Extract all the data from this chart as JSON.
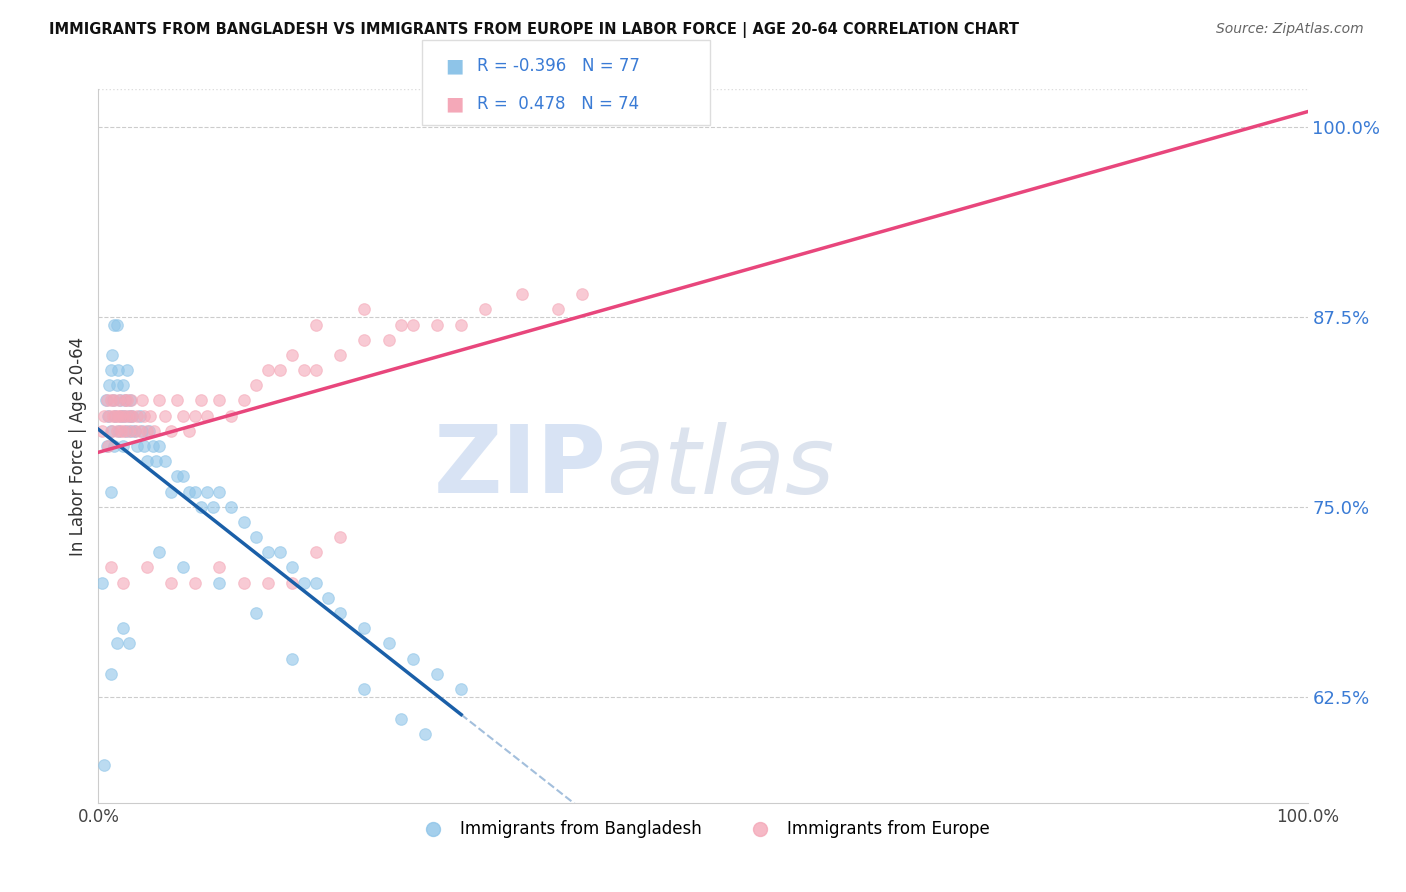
{
  "title": "IMMIGRANTS FROM BANGLADESH VS IMMIGRANTS FROM EUROPE IN LABOR FORCE | AGE 20-64 CORRELATION CHART",
  "source": "Source: ZipAtlas.com",
  "ylabel": "In Labor Force | Age 20-64",
  "legend_label_1": "Immigrants from Bangladesh",
  "legend_label_2": "Immigrants from Europe",
  "r1": -0.396,
  "n1": 77,
  "r2": 0.478,
  "n2": 74,
  "color_bangladesh": "#8ec4e8",
  "color_europe": "#f4a8b8",
  "color_line_bangladesh": "#1a5fa8",
  "color_line_europe": "#e8467c",
  "xlim": [
    0.0,
    1.0
  ],
  "ylim": [
    0.555,
    1.025
  ],
  "yticks": [
    0.625,
    0.75,
    0.875,
    1.0
  ],
  "ytick_labels": [
    "62.5%",
    "75.0%",
    "87.5%",
    "100.0%"
  ],
  "xtick_labels": [
    "0.0%",
    "100.0%"
  ],
  "xticks": [
    0.0,
    1.0
  ],
  "watermark_zip": "ZIP",
  "watermark_atlas": "atlas",
  "background_color": "#ffffff",
  "scatter_alpha": 0.6,
  "scatter_size": 70,
  "bangladesh_x": [
    0.003,
    0.005,
    0.006,
    0.007,
    0.008,
    0.009,
    0.01,
    0.01,
    0.01,
    0.011,
    0.012,
    0.013,
    0.013,
    0.014,
    0.015,
    0.015,
    0.016,
    0.017,
    0.018,
    0.019,
    0.02,
    0.02,
    0.021,
    0.022,
    0.023,
    0.024,
    0.025,
    0.026,
    0.027,
    0.028,
    0.03,
    0.032,
    0.034,
    0.036,
    0.038,
    0.04,
    0.042,
    0.045,
    0.048,
    0.05,
    0.055,
    0.06,
    0.065,
    0.07,
    0.075,
    0.08,
    0.085,
    0.09,
    0.095,
    0.1,
    0.11,
    0.12,
    0.13,
    0.14,
    0.15,
    0.16,
    0.17,
    0.18,
    0.19,
    0.2,
    0.22,
    0.24,
    0.26,
    0.28,
    0.3,
    0.22,
    0.25,
    0.27,
    0.01,
    0.015,
    0.02,
    0.025,
    0.05,
    0.07,
    0.1,
    0.13,
    0.16
  ],
  "bangladesh_y": [
    0.7,
    0.58,
    0.82,
    0.79,
    0.81,
    0.83,
    0.84,
    0.8,
    0.76,
    0.85,
    0.82,
    0.87,
    0.79,
    0.81,
    0.83,
    0.87,
    0.84,
    0.8,
    0.82,
    0.81,
    0.83,
    0.79,
    0.81,
    0.82,
    0.8,
    0.84,
    0.81,
    0.82,
    0.8,
    0.81,
    0.8,
    0.79,
    0.81,
    0.8,
    0.79,
    0.78,
    0.8,
    0.79,
    0.78,
    0.79,
    0.78,
    0.76,
    0.77,
    0.77,
    0.76,
    0.76,
    0.75,
    0.76,
    0.75,
    0.76,
    0.75,
    0.74,
    0.73,
    0.72,
    0.72,
    0.71,
    0.7,
    0.7,
    0.69,
    0.68,
    0.67,
    0.66,
    0.65,
    0.64,
    0.63,
    0.63,
    0.61,
    0.6,
    0.64,
    0.66,
    0.67,
    0.66,
    0.72,
    0.71,
    0.7,
    0.68,
    0.65
  ],
  "europe_x": [
    0.003,
    0.005,
    0.007,
    0.008,
    0.009,
    0.01,
    0.011,
    0.012,
    0.013,
    0.014,
    0.015,
    0.016,
    0.017,
    0.018,
    0.019,
    0.02,
    0.021,
    0.022,
    0.023,
    0.024,
    0.025,
    0.026,
    0.027,
    0.028,
    0.03,
    0.032,
    0.034,
    0.036,
    0.038,
    0.04,
    0.043,
    0.046,
    0.05,
    0.055,
    0.06,
    0.065,
    0.07,
    0.075,
    0.08,
    0.085,
    0.09,
    0.1,
    0.11,
    0.12,
    0.13,
    0.14,
    0.15,
    0.16,
    0.17,
    0.18,
    0.2,
    0.22,
    0.24,
    0.26,
    0.28,
    0.3,
    0.32,
    0.35,
    0.38,
    0.4,
    0.18,
    0.22,
    0.25,
    0.18,
    0.2,
    0.16,
    0.14,
    0.12,
    0.1,
    0.08,
    0.06,
    0.04,
    0.02,
    0.01
  ],
  "europe_y": [
    0.8,
    0.81,
    0.82,
    0.79,
    0.81,
    0.82,
    0.8,
    0.81,
    0.82,
    0.81,
    0.8,
    0.81,
    0.82,
    0.81,
    0.8,
    0.81,
    0.8,
    0.82,
    0.81,
    0.82,
    0.8,
    0.81,
    0.82,
    0.81,
    0.8,
    0.81,
    0.8,
    0.82,
    0.81,
    0.8,
    0.81,
    0.8,
    0.82,
    0.81,
    0.8,
    0.82,
    0.81,
    0.8,
    0.81,
    0.82,
    0.81,
    0.82,
    0.81,
    0.82,
    0.83,
    0.84,
    0.84,
    0.85,
    0.84,
    0.84,
    0.85,
    0.86,
    0.86,
    0.87,
    0.87,
    0.87,
    0.88,
    0.89,
    0.88,
    0.89,
    0.87,
    0.88,
    0.87,
    0.72,
    0.73,
    0.7,
    0.7,
    0.7,
    0.71,
    0.7,
    0.7,
    0.71,
    0.7,
    0.71
  ]
}
